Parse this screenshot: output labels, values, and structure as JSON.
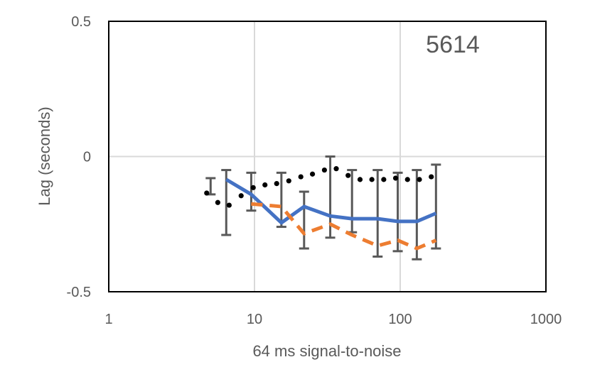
{
  "chart_data": {
    "type": "line",
    "title": "",
    "annotation": "5614",
    "xlabel": "64 ms signal-to-noise",
    "ylabel": "Lag (seconds)",
    "xscale": "log",
    "xlim": [
      1,
      1000
    ],
    "ylim": [
      -0.5,
      0.5
    ],
    "x_ticks": [
      1,
      10,
      100,
      1000
    ],
    "x_tick_labels": [
      "1",
      "10",
      "100",
      "1000"
    ],
    "y_ticks": [
      -0.5,
      0,
      0.5
    ],
    "y_tick_labels": [
      "-0.5",
      "0",
      "0.5"
    ],
    "grid": true,
    "legend": "none",
    "series": [
      {
        "style": "dotted",
        "color": "#000000",
        "x": [
          4.7,
          5.6,
          6.7,
          8.1,
          9.8,
          11.8,
          14.2,
          17.2,
          20.8,
          25.0,
          30.2,
          36.4,
          43.9,
          53.0,
          63.9,
          77.1,
          93.0,
          112.2,
          135.4,
          163.4
        ],
        "y": [
          -0.135,
          -0.17,
          -0.18,
          -0.145,
          -0.115,
          -0.105,
          -0.1,
          -0.09,
          -0.075,
          -0.065,
          -0.05,
          -0.045,
          -0.07,
          -0.085,
          -0.085,
          -0.085,
          -0.08,
          -0.085,
          -0.085,
          -0.075
        ]
      },
      {
        "style": "solid",
        "color": "#4472C4",
        "x": [
          6.4,
          9.5,
          15.3,
          21.9,
          33.1,
          46.7,
          70.0,
          96.2,
          130.0,
          176.0
        ],
        "y": [
          -0.085,
          -0.14,
          -0.245,
          -0.185,
          -0.22,
          -0.23,
          -0.23,
          -0.24,
          -0.24,
          -0.21
        ]
      },
      {
        "style": "dashed",
        "color": "#ED7D31",
        "x": [
          9.5,
          15.3,
          21.9,
          33.1,
          46.7,
          70.0,
          96.2,
          130.0,
          176.0
        ],
        "y": [
          -0.175,
          -0.185,
          -0.285,
          -0.25,
          -0.29,
          -0.33,
          -0.31,
          -0.34,
          -0.31
        ]
      }
    ],
    "error_bars": [
      {
        "x": 5.0,
        "low": -0.14,
        "high": -0.08
      },
      {
        "x": 6.4,
        "low": -0.29,
        "high": -0.05
      },
      {
        "x": 9.5,
        "low": -0.2,
        "high": -0.06
      },
      {
        "x": 15.3,
        "low": -0.26,
        "high": -0.06
      },
      {
        "x": 21.9,
        "low": -0.34,
        "high": -0.13
      },
      {
        "x": 33.1,
        "low": -0.3,
        "high": 0.0
      },
      {
        "x": 46.7,
        "low": -0.28,
        "high": -0.05
      },
      {
        "x": 70.0,
        "low": -0.37,
        "high": -0.05
      },
      {
        "x": 96.2,
        "low": -0.35,
        "high": -0.06
      },
      {
        "x": 130.0,
        "low": -0.38,
        "high": -0.05
      },
      {
        "x": 176.0,
        "low": -0.34,
        "high": -0.03
      }
    ]
  }
}
